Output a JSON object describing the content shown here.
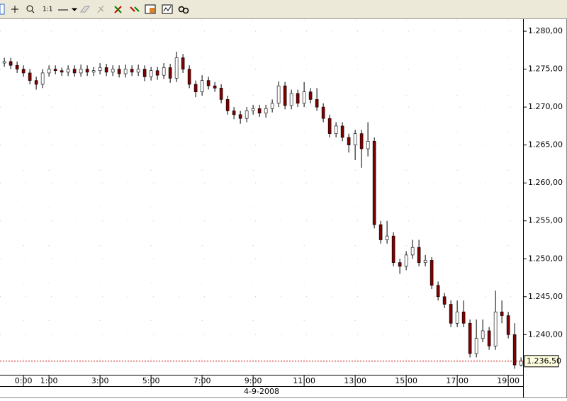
{
  "toolbar": {
    "zoom_label": "1:1"
  },
  "chart_data": {
    "type": "candlestick",
    "x": [
      -0.75,
      -0.5,
      -0.25,
      0,
      0.25,
      0.5,
      0.75,
      1,
      1.25,
      1.5,
      1.75,
      2,
      2.25,
      2.5,
      2.75,
      3,
      3.25,
      3.5,
      3.75,
      4,
      4.25,
      4.5,
      4.75,
      5,
      5.25,
      5.5,
      5.75,
      6,
      6.25,
      6.5,
      6.75,
      7,
      7.25,
      7.5,
      7.75,
      8,
      8.25,
      8.5,
      8.75,
      9,
      9.25,
      9.5,
      9.75,
      10,
      10.25,
      10.5,
      10.75,
      11,
      11.25,
      11.5,
      11.75,
      12,
      12.25,
      12.5,
      12.75,
      13,
      13.25,
      13.5,
      13.75,
      14,
      14.25,
      14.5,
      14.75,
      15,
      15.25,
      15.5,
      15.75,
      16,
      16.25,
      16.5,
      16.75,
      17,
      17.25,
      17.5,
      17.75,
      18,
      18.25,
      18.5,
      18.75,
      19,
      19.25,
      19.5
    ],
    "open": [
      1275.8,
      1276,
      1275.5,
      1275,
      1274.5,
      1273.5,
      1273,
      1274.5,
      1275,
      1274.8,
      1274.6,
      1275,
      1274.5,
      1275,
      1274.6,
      1274.8,
      1275.2,
      1274.6,
      1275,
      1274.4,
      1275,
      1274.6,
      1275,
      1274,
      1274.8,
      1274.2,
      1275.2,
      1273.8,
      1276.5,
      1275,
      1273,
      1272,
      1273.5,
      1272.8,
      1272.5,
      1271,
      1269.5,
      1269,
      1268.5,
      1269.5,
      1269.8,
      1269.2,
      1269.8,
      1270.5,
      1272.8,
      1270.2,
      1271.8,
      1270.5,
      1272,
      1271,
      1270,
      1268.5,
      1266.5,
      1267.5,
      1266,
      1265,
      1266.5,
      1264.5,
      1265.5,
      1254.5,
      1252.5,
      1253,
      1249.5,
      1249,
      1250.5,
      1251.5,
      1249.5,
      1249.8,
      1246.5,
      1245,
      1244,
      1241.5,
      1243,
      1241.5,
      1237.5,
      1239.5,
      1240.5,
      1238.5,
      1243,
      1242.5,
      1240,
      1236
    ],
    "high": [
      1276.5,
      1276.5,
      1276,
      1275.5,
      1275,
      1274,
      1275,
      1275.5,
      1275.5,
      1275.2,
      1275.5,
      1275.5,
      1275.6,
      1275.5,
      1275.3,
      1275.8,
      1275.7,
      1275.5,
      1275.5,
      1275.6,
      1275.5,
      1275.6,
      1275.5,
      1275.3,
      1275.3,
      1275.8,
      1275.7,
      1277.3,
      1277,
      1275.5,
      1273.5,
      1274.2,
      1274,
      1273.3,
      1273,
      1271.5,
      1270,
      1269.5,
      1270,
      1270.3,
      1270.3,
      1270.3,
      1271,
      1273.4,
      1273.3,
      1272.3,
      1272.3,
      1273.3,
      1272.5,
      1272.5,
      1270.5,
      1269,
      1268,
      1268,
      1266.5,
      1267,
      1267,
      1268,
      1266,
      1255,
      1255,
      1253.5,
      1250,
      1251,
      1252.5,
      1252.5,
      1250.5,
      1250.2,
      1247,
      1245.5,
      1244.5,
      1244.5,
      1244.5,
      1242,
      1242,
      1242,
      1241,
      1245.8,
      1244.5,
      1243,
      1241.5,
      1237
    ],
    "low": [
      1275.3,
      1275,
      1274.5,
      1274,
      1273,
      1272.3,
      1272.5,
      1274,
      1274.3,
      1274.1,
      1274.1,
      1274,
      1274,
      1274.1,
      1274.1,
      1274.3,
      1274.1,
      1274.1,
      1273.9,
      1273.9,
      1274.1,
      1274.1,
      1273.4,
      1273.5,
      1273.6,
      1273.7,
      1273.2,
      1273.3,
      1274.5,
      1272.5,
      1271.3,
      1271.5,
      1272.3,
      1272,
      1270.5,
      1269,
      1268.4,
      1267.8,
      1268,
      1269,
      1268.7,
      1268.6,
      1269.3,
      1270,
      1269.7,
      1269.7,
      1270,
      1270,
      1270.5,
      1269.5,
      1268,
      1266,
      1266,
      1265.5,
      1264,
      1263,
      1262,
      1263.5,
      1254,
      1252,
      1252,
      1249,
      1248,
      1248.5,
      1250,
      1249,
      1249,
      1246,
      1244.5,
      1243.5,
      1241,
      1241,
      1241,
      1237,
      1237,
      1239,
      1238,
      1238,
      1241.5,
      1239.5,
      1235.5,
      1235.8
    ],
    "close": [
      1276,
      1275.5,
      1275,
      1274.5,
      1273.5,
      1273,
      1274.5,
      1275,
      1274.8,
      1274.6,
      1275,
      1274.5,
      1275,
      1274.6,
      1274.8,
      1275.2,
      1274.6,
      1275,
      1274.4,
      1275,
      1274.6,
      1275,
      1274,
      1274.8,
      1274.2,
      1275.2,
      1273.8,
      1276.5,
      1275,
      1273,
      1272,
      1273.5,
      1272.8,
      1272.5,
      1271,
      1269.5,
      1269,
      1268.5,
      1269.5,
      1269.8,
      1269.2,
      1269.8,
      1270.5,
      1272.8,
      1270.2,
      1271.8,
      1270.5,
      1272,
      1271,
      1270,
      1268.5,
      1266.5,
      1267.5,
      1266,
      1265,
      1266.5,
      1264.5,
      1265.5,
      1254.5,
      1252.5,
      1253,
      1249.5,
      1249,
      1250.5,
      1251.5,
      1249.5,
      1249.8,
      1246.5,
      1245,
      1244,
      1241.5,
      1243,
      1241.5,
      1237.5,
      1239.5,
      1240.5,
      1238.5,
      1243,
      1242.5,
      1240,
      1236,
      1236.5
    ],
    "up_color": "#ffffff",
    "down_color": "#800000",
    "xlim": [
      -0.92,
      19.58
    ],
    "xticks": [
      {
        "value": 0,
        "label": "0:00"
      },
      {
        "value": 1,
        "label": "1:00"
      },
      {
        "value": 3,
        "label": "3:00"
      },
      {
        "value": 5,
        "label": "5:00"
      },
      {
        "value": 7,
        "label": "7:00"
      },
      {
        "value": 9,
        "label": "9:00"
      },
      {
        "value": 11,
        "label": "11:00"
      },
      {
        "value": 13,
        "label": "13:00"
      },
      {
        "value": 15,
        "label": "15:00"
      },
      {
        "value": 17,
        "label": "17:00"
      },
      {
        "value": 19,
        "label": "19:00"
      }
    ],
    "date_label": "4-9-2008",
    "ylim": [
      1234.8,
      1281.5
    ],
    "yticks": [
      {
        "value": 1280,
        "label": "1.280,00"
      },
      {
        "value": 1275,
        "label": "1.275,00"
      },
      {
        "value": 1270,
        "label": "1.270,00"
      },
      {
        "value": 1265,
        "label": "1.265,00"
      },
      {
        "value": 1260,
        "label": "1.260,00"
      },
      {
        "value": 1255,
        "label": "1.255,00"
      },
      {
        "value": 1250,
        "label": "1.250,00"
      },
      {
        "value": 1245,
        "label": "1.245,00"
      },
      {
        "value": 1240,
        "label": "1.240,00"
      }
    ],
    "last_price": {
      "value": 1236.5,
      "label": "1.236,50"
    },
    "last_color": "#cc0000",
    "grid": true
  }
}
